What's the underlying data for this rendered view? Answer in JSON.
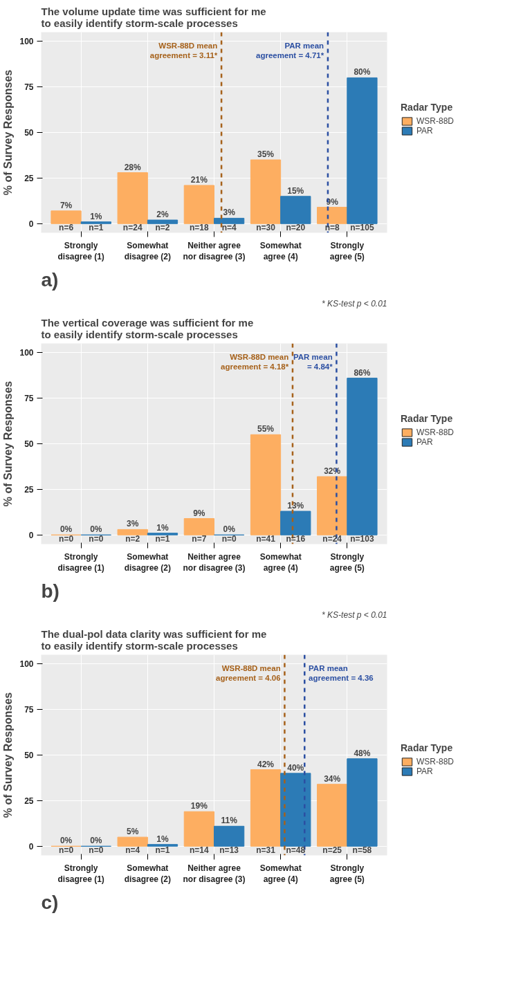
{
  "chart_data": [
    {
      "type": "bar",
      "title": "The volume update time was sufficient for me\nto easily identify storm-scale processes",
      "ylabel": "% of Survey Responses",
      "legend_title": "Radar Type",
      "legend": "right",
      "grid": true,
      "ylim": [
        -5,
        105
      ],
      "yticks": [
        0,
        25,
        50,
        75,
        100
      ],
      "x": [
        1,
        2,
        3,
        4,
        5
      ],
      "xlim": [
        0.4,
        5.6
      ],
      "xticks": [
        {
          "value": 1,
          "label": "Strongly\ndisagree (1)"
        },
        {
          "value": 2,
          "label": "Somewhat\ndisagree (2)"
        },
        {
          "value": 3,
          "label": "Neither agree\nnor disagree (3)"
        },
        {
          "value": 4,
          "label": "Somewhat\nagree (4)"
        },
        {
          "value": 5,
          "label": "Strongly\nagree (5)"
        }
      ],
      "series": [
        {
          "name": "WSR-88D",
          "color": "#fdae61",
          "values": [
            7,
            28,
            21,
            35,
            9
          ],
          "value_labels": [
            "7%",
            "28%",
            "21%",
            "35%",
            "9%"
          ]
        },
        {
          "name": "PAR",
          "color": "#2c7bb6",
          "values": [
            1,
            2,
            3,
            15,
            80
          ],
          "value_labels": [
            "1%",
            "2%",
            "3%",
            "15%",
            "80%"
          ]
        }
      ],
      "ref_lines": [
        {
          "axis": "x",
          "value": 3.11,
          "label": "WSR-88D mean\nagreement = 3.11*",
          "color": "#a6611a",
          "line_style": "dashed"
        },
        {
          "axis": "x",
          "value": 4.71,
          "label": "PAR mean\nagreement = 4.71*",
          "color": "#2b4fa2",
          "line_style": "dashed"
        }
      ],
      "annotations": [
        {
          "text": "n=6",
          "x": 1,
          "y": 0
        },
        {
          "text": "n=1",
          "x": 1,
          "y": 0
        },
        {
          "text": "n=24",
          "x": 2,
          "y": 0
        },
        {
          "text": "n=2",
          "x": 2,
          "y": 0
        },
        {
          "text": "n=18",
          "x": 3,
          "y": 0
        },
        {
          "text": "n=4",
          "x": 3,
          "y": 0
        },
        {
          "text": "n=30",
          "x": 4,
          "y": 0
        },
        {
          "text": "n=20",
          "x": 4,
          "y": 0
        },
        {
          "text": "n=8",
          "x": 5,
          "y": 0
        },
        {
          "text": "n=105",
          "x": 5,
          "y": 0
        },
        "a)",
        "* KS-test p < 0.01"
      ]
    },
    {
      "type": "bar",
      "title": "The vertical coverage was sufficient for me\nto easily identify storm-scale processes",
      "ylabel": "% of Survey Responses",
      "legend_title": "Radar Type",
      "legend": "right",
      "grid": true,
      "ylim": [
        -5,
        105
      ],
      "yticks": [
        0,
        25,
        50,
        75,
        100
      ],
      "x": [
        1,
        2,
        3,
        4,
        5
      ],
      "xlim": [
        0.4,
        5.6
      ],
      "xticks": [
        {
          "value": 1,
          "label": "Strongly\ndisagree (1)"
        },
        {
          "value": 2,
          "label": "Somewhat\ndisagree (2)"
        },
        {
          "value": 3,
          "label": "Neither agree\nnor disagree (3)"
        },
        {
          "value": 4,
          "label": "Somewhat\nagree (4)"
        },
        {
          "value": 5,
          "label": "Strongly\nagree (5)"
        }
      ],
      "series": [
        {
          "name": "WSR-88D",
          "color": "#fdae61",
          "values": [
            0,
            3,
            9,
            55,
            32
          ],
          "value_labels": [
            "0%",
            "3%",
            "9%",
            "55%",
            "32%"
          ]
        },
        {
          "name": "PAR",
          "color": "#2c7bb6",
          "values": [
            0,
            1,
            0,
            13,
            86
          ],
          "value_labels": [
            "0%",
            "1%",
            "0%",
            "13%",
            "86%"
          ]
        }
      ],
      "ref_lines": [
        {
          "axis": "x",
          "value": 4.18,
          "label": "WSR-88D mean\nagreement = 4.18*",
          "color": "#a6611a",
          "line_style": "dashed"
        },
        {
          "axis": "x",
          "value": 4.84,
          "label": "PAR mean\n= 4.84*",
          "color": "#2b4fa2",
          "line_style": "dashed"
        }
      ],
      "annotations": [
        {
          "text": "n=0",
          "x": 1,
          "y": 0
        },
        {
          "text": "n=0",
          "x": 1,
          "y": 0
        },
        {
          "text": "n=2",
          "x": 2,
          "y": 0
        },
        {
          "text": "n=1",
          "x": 2,
          "y": 0
        },
        {
          "text": "n=7",
          "x": 3,
          "y": 0
        },
        {
          "text": "n=0",
          "x": 3,
          "y": 0
        },
        {
          "text": "n=41",
          "x": 4,
          "y": 0
        },
        {
          "text": "n=16",
          "x": 4,
          "y": 0
        },
        {
          "text": "n=24",
          "x": 5,
          "y": 0
        },
        {
          "text": "n=103",
          "x": 5,
          "y": 0
        },
        "b)",
        "* KS-test p < 0.01"
      ]
    },
    {
      "type": "bar",
      "title": "The dual-pol data clarity was sufficient for me\nto easily identify storm-scale processes",
      "ylabel": "% of Survey Responses",
      "legend_title": "Radar Type",
      "legend": "right",
      "grid": true,
      "ylim": [
        -5,
        105
      ],
      "yticks": [
        0,
        25,
        50,
        75,
        100
      ],
      "x": [
        1,
        2,
        3,
        4,
        5
      ],
      "xlim": [
        0.4,
        5.6
      ],
      "xticks": [
        {
          "value": 1,
          "label": "Strongly\ndisagree (1)"
        },
        {
          "value": 2,
          "label": "Somewhat\ndisagree (2)"
        },
        {
          "value": 3,
          "label": "Neither agree\nnor disagree (3)"
        },
        {
          "value": 4,
          "label": "Somewhat\nagree (4)"
        },
        {
          "value": 5,
          "label": "Strongly\nagree (5)"
        }
      ],
      "series": [
        {
          "name": "WSR-88D",
          "color": "#fdae61",
          "values": [
            0,
            5,
            19,
            42,
            34
          ],
          "value_labels": [
            "0%",
            "5%",
            "19%",
            "42%",
            "34%"
          ]
        },
        {
          "name": "PAR",
          "color": "#2c7bb6",
          "values": [
            0,
            1,
            11,
            40,
            48
          ],
          "value_labels": [
            "0%",
            "1%",
            "11%",
            "40%",
            "48%"
          ]
        }
      ],
      "ref_lines": [
        {
          "axis": "x",
          "value": 4.06,
          "label": "WSR-88D mean\nagreement = 4.06",
          "color": "#a6611a",
          "line_style": "dashed"
        },
        {
          "axis": "x",
          "value": 4.36,
          "label": "PAR mean\nagreement = 4.36",
          "color": "#2b4fa2",
          "line_style": "dashed"
        }
      ],
      "annotations": [
        {
          "text": "n=0",
          "x": 1,
          "y": 0
        },
        {
          "text": "n=0",
          "x": 1,
          "y": 0
        },
        {
          "text": "n=4",
          "x": 2,
          "y": 0
        },
        {
          "text": "n=1",
          "x": 2,
          "y": 0
        },
        {
          "text": "n=14",
          "x": 3,
          "y": 0
        },
        {
          "text": "n=13",
          "x": 3,
          "y": 0
        },
        {
          "text": "n=31",
          "x": 4,
          "y": 0
        },
        {
          "text": "n=48",
          "x": 4,
          "y": 0
        },
        {
          "text": "n=25",
          "x": 5,
          "y": 0
        },
        {
          "text": "n=58",
          "x": 5,
          "y": 0
        },
        "c)"
      ]
    }
  ]
}
